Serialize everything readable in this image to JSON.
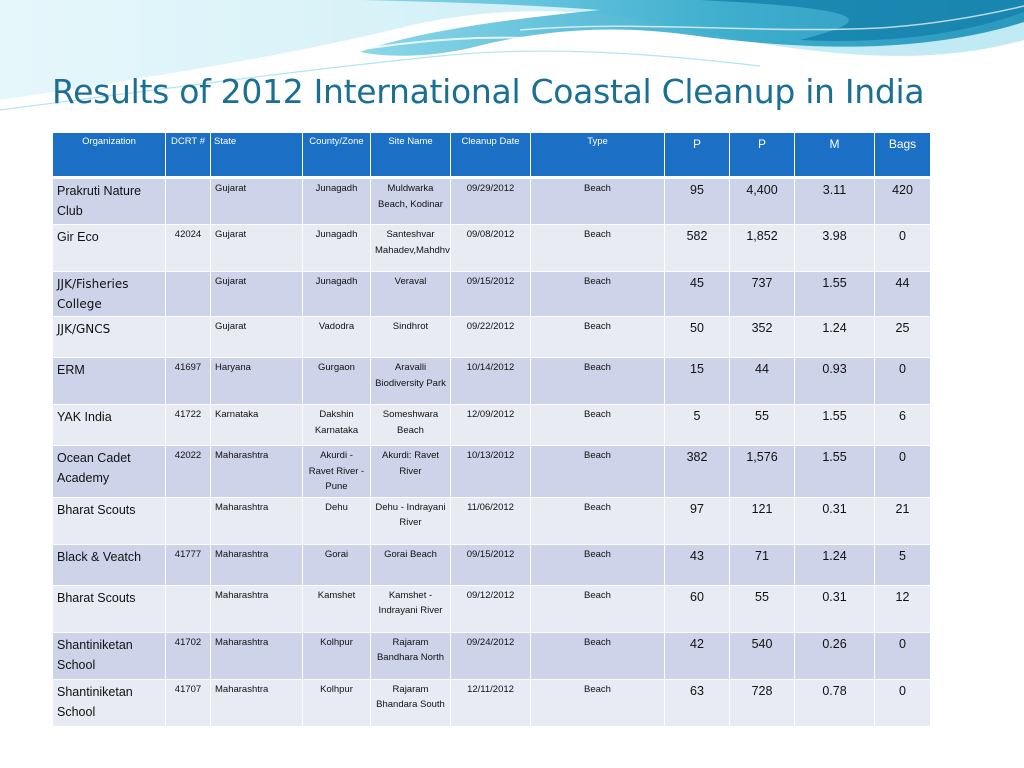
{
  "title": "Results of 2012 International Coastal Cleanup in India",
  "table": {
    "headers": [
      "Organization",
      "DCRT #",
      "State",
      "County/Zone",
      "Site Name",
      "Cleanup Date",
      "Type",
      "P",
      "P",
      "M",
      "Bags"
    ],
    "rows": [
      {
        "org": "Prakruti Nature Club",
        "dcrt": "",
        "state": "Gujarat",
        "county": "Junagadh",
        "site": "Muldwarka Beach, Kodinar",
        "date": "09/29/2012",
        "type": "Beach",
        "p1": "95",
        "p2": "4,400",
        "m": "3.11",
        "bags": "420"
      },
      {
        "org": "Gir Eco",
        "dcrt": "42024",
        "state": "Gujarat",
        "county": "Junagadh",
        "site": "Santeshvar Mahadev,Mahdhvad",
        "date": "09/08/2012",
        "type": "Beach",
        "p1": "582",
        "p2": "1,852",
        "m": "3.98",
        "bags": "0"
      },
      {
        "org": "JJK/Fisheries College",
        "dcrt": "",
        "state": "Gujarat",
        "county": "Junagadh",
        "site": "Veraval",
        "date": "09/15/2012",
        "type": "Beach",
        "p1": "45",
        "p2": "737",
        "m": "1.55",
        "bags": "44"
      },
      {
        "org": "JJK/GNCS",
        "dcrt": "",
        "state": "Gujarat",
        "county": "Vadodra",
        "site": "Sindhrot",
        "date": "09/22/2012",
        "type": "Beach",
        "p1": "50",
        "p2": "352",
        "m": "1.24",
        "bags": "25"
      },
      {
        "org": "ERM",
        "dcrt": "41697",
        "state": "Haryana",
        "county": "Gurgaon",
        "site": "Aravalli Biodiversity Park",
        "date": "10/14/2012",
        "type": "Beach",
        "p1": "15",
        "p2": "44",
        "m": "0.93",
        "bags": "0"
      },
      {
        "org": "YAK India",
        "dcrt": "41722",
        "state": "Karnataka",
        "county": "Dakshin Karnataka",
        "site": "Someshwara Beach",
        "date": "12/09/2012",
        "type": "Beach",
        "p1": "5",
        "p2": "55",
        "m": "1.55",
        "bags": "6"
      },
      {
        "org": "Ocean Cadet Academy",
        "dcrt": "42022",
        "state": "Maharashtra",
        "county": "Akurdi - Ravet River - Pune",
        "site": "Akurdi: Ravet River",
        "date": "10/13/2012",
        "type": "Beach",
        "p1": "382",
        "p2": "1,576",
        "m": "1.55",
        "bags": "0"
      },
      {
        "org": "Bharat Scouts",
        "dcrt": "",
        "state": "Maharashtra",
        "county": "Dehu",
        "site": "Dehu - Indrayani River",
        "date": "11/06/2012",
        "type": "Beach",
        "p1": "97",
        "p2": "121",
        "m": "0.31",
        "bags": "21"
      },
      {
        "org": "Black & Veatch",
        "dcrt": "41777",
        "state": "Maharashtra",
        "county": "Gorai",
        "site": "Gorai Beach",
        "date": "09/15/2012",
        "type": "Beach",
        "p1": "43",
        "p2": "71",
        "m": "1.24",
        "bags": "5"
      },
      {
        "org": "Bharat Scouts",
        "dcrt": "",
        "state": "Maharashtra",
        "county": "Kamshet",
        "site": "Kamshet - Indrayani River",
        "date": "09/12/2012",
        "type": "Beach",
        "p1": "60",
        "p2": "55",
        "m": "0.31",
        "bags": "12"
      },
      {
        "org": "Shantiniketan School",
        "dcrt": "41702",
        "state": "Maharashtra",
        "county": "Kolhpur",
        "site": "Rajaram Bandhara North",
        "date": "09/24/2012",
        "type": "Beach",
        "p1": "42",
        "p2": "540",
        "m": "0.26",
        "bags": "0"
      },
      {
        "org": "Shantiniketan School",
        "dcrt": "41707",
        "state": "Maharashtra",
        "county": "Kolhpur",
        "site": "Rajaram Bhandara South",
        "date": "12/11/2012",
        "type": "Beach",
        "p1": "63",
        "p2": "728",
        "m": "0.78",
        "bags": "0"
      }
    ]
  },
  "colors": {
    "title": "#1a6f95",
    "header_bg": "#1b6fc4",
    "row_odd": "#cdd4ea",
    "row_even": "#e8ebf4"
  }
}
